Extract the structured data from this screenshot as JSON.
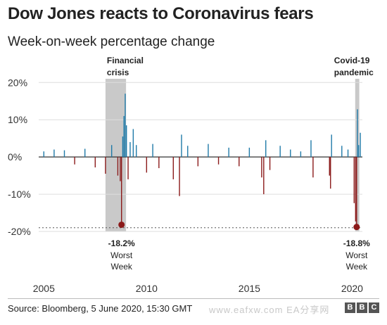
{
  "title": "Dow Jones reacts to Coronavirus fears",
  "subtitle": "Week-on-week percentage change",
  "source": "Source: Bloomberg, 5 June 2020, 15:30 GMT",
  "watermark": "www.eafxw.com  EA分享网",
  "logo": [
    "B",
    "B",
    "C"
  ],
  "colors": {
    "positive": "#1f7aa8",
    "negative": "#8b1a1a",
    "shade": "#c9c9c9",
    "zero_line": "#333333"
  },
  "chart_data": {
    "type": "bar",
    "x_ticks": [
      "2005",
      "2010",
      "2015",
      "2020"
    ],
    "xlim": [
      2004.75,
      2020.5
    ],
    "y_ticks": [
      {
        "value": 20,
        "label": "20%"
      },
      {
        "value": 10,
        "label": "10%"
      },
      {
        "value": 0,
        "label": "0%"
      },
      {
        "value": -10,
        "label": "-10%"
      },
      {
        "value": -20,
        "label": "-20%"
      }
    ],
    "ylim": [
      -20,
      21
    ],
    "gridlines": true,
    "series": [
      {
        "values": [
          [
            2005.0,
            1.5
          ],
          [
            2005.5,
            2.0
          ],
          [
            2006.0,
            1.8
          ],
          [
            2006.5,
            -2.0
          ],
          [
            2007.0,
            2.2
          ],
          [
            2007.5,
            -2.8
          ],
          [
            2008.0,
            -4.5
          ],
          [
            2008.3,
            3.2
          ],
          [
            2008.6,
            -5.0
          ],
          [
            2008.72,
            -6.5
          ],
          [
            2008.78,
            -18.2
          ],
          [
            2008.84,
            5.5
          ],
          [
            2008.9,
            11.0
          ],
          [
            2008.96,
            17.0
          ],
          [
            2009.02,
            8.5
          ],
          [
            2009.1,
            -6.0
          ],
          [
            2009.2,
            4.0
          ],
          [
            2009.35,
            7.5
          ],
          [
            2009.5,
            3.2
          ],
          [
            2010.0,
            -4.2
          ],
          [
            2010.3,
            3.5
          ],
          [
            2010.6,
            -3.0
          ],
          [
            2011.3,
            -6.0
          ],
          [
            2011.6,
            -10.5
          ],
          [
            2011.7,
            6.0
          ],
          [
            2012.0,
            3.0
          ],
          [
            2012.5,
            -2.5
          ],
          [
            2013.0,
            3.5
          ],
          [
            2013.5,
            -2.0
          ],
          [
            2014.0,
            2.5
          ],
          [
            2014.5,
            -2.5
          ],
          [
            2015.0,
            2.5
          ],
          [
            2015.6,
            -5.5
          ],
          [
            2015.7,
            -10.0
          ],
          [
            2015.8,
            4.5
          ],
          [
            2016.0,
            -3.5
          ],
          [
            2016.5,
            3.0
          ],
          [
            2017.0,
            2.0
          ],
          [
            2017.5,
            1.5
          ],
          [
            2018.0,
            4.5
          ],
          [
            2018.1,
            -5.5
          ],
          [
            2018.9,
            -5.0
          ],
          [
            2018.95,
            -8.5
          ],
          [
            2019.0,
            6.0
          ],
          [
            2019.5,
            3.0
          ],
          [
            2019.8,
            2.0
          ],
          [
            2020.1,
            -12.4
          ],
          [
            2020.17,
            -17.3
          ],
          [
            2020.22,
            -18.8
          ],
          [
            2020.26,
            12.8
          ],
          [
            2020.32,
            3.2
          ],
          [
            2020.4,
            6.5
          ]
        ]
      }
    ],
    "shaded_regions": [
      {
        "start": 2008.0,
        "end": 2009.0,
        "label_lines": [
          "Financial",
          "crisis"
        ]
      },
      {
        "start": 2020.15,
        "end": 2020.35,
        "label_lines": [
          "Covid-19",
          "pandemic"
        ]
      }
    ],
    "annotations": [
      {
        "x": 2008.78,
        "y": -18.2,
        "value_label": "-18.2%",
        "note_lines": [
          "Worst",
          "Week"
        ]
      },
      {
        "x": 2020.22,
        "y": -18.8,
        "value_label": "-18.8%",
        "note_lines": [
          "Worst",
          "Week"
        ]
      }
    ]
  }
}
